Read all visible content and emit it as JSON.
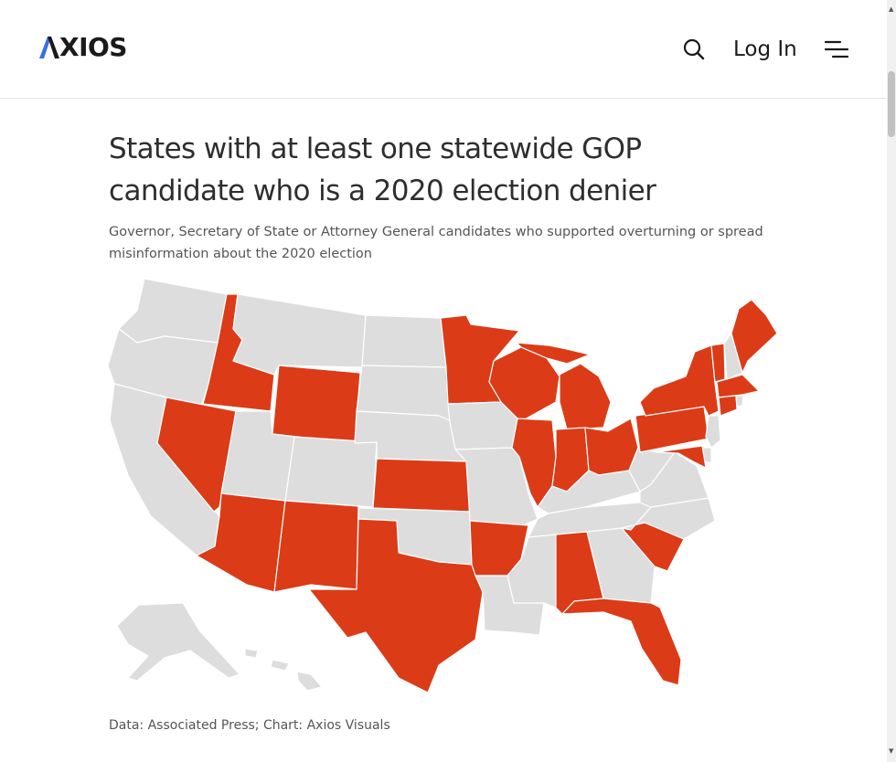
{
  "header": {
    "logo_text": "XIOS",
    "login_label": "Log In",
    "search_icon": "search-icon",
    "menu_icon": "menu-icon",
    "brand_color": "#1a1a1a",
    "accent_color": "#3b6fe0"
  },
  "chart": {
    "title": "States with at least one statewide GOP candidate who is a 2020 election denier",
    "subtitle": "Governor, Secretary of State or Attorney General candidates who supported overturning or spread misinformation about the 2020 election",
    "source": "Data: Associated Press; Chart: Axios Visuals"
  },
  "map_data": {
    "highlight_color": "#dc3b17",
    "base_color": "#dddddd",
    "highlighted_states": [
      "ID",
      "NV",
      "WY",
      "AZ",
      "NM",
      "TX",
      "KS",
      "MN",
      "WI",
      "MI",
      "IL",
      "IN",
      "OH",
      "PA",
      "NY",
      "VT",
      "ME",
      "MA",
      "CT",
      "MD",
      "AR",
      "AL",
      "FL",
      "SC"
    ],
    "other_states": [
      "WA",
      "OR",
      "CA",
      "MT",
      "UT",
      "CO",
      "ND",
      "SD",
      "NE",
      "OK",
      "IA",
      "MO",
      "LA",
      "MS",
      "TN",
      "KY",
      "GA",
      "NC",
      "VA",
      "WV",
      "NJ",
      "DE",
      "NH",
      "RI",
      "AK",
      "HI"
    ]
  }
}
